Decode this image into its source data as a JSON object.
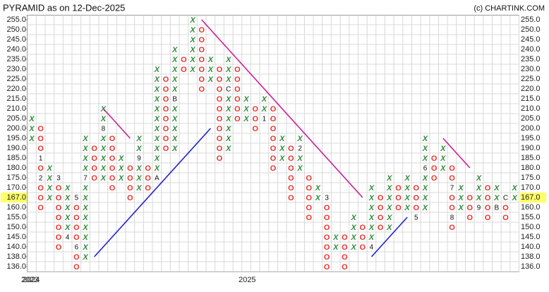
{
  "chart_data": {
    "type": "pnf",
    "title": "PYRAMID as on 12-Dec-2025",
    "credit": "(c) CHARTINK.COM",
    "levels": [
      255,
      250,
      245,
      240,
      235,
      230,
      225,
      220,
      215,
      210,
      205,
      200,
      195,
      190,
      185,
      180,
      175,
      170,
      165,
      160,
      155,
      150,
      145,
      140,
      138,
      136
    ],
    "yticks": [
      {
        "value": 255,
        "label": "255.0"
      },
      {
        "value": 250,
        "label": "250.0"
      },
      {
        "value": 245,
        "label": "245.0"
      },
      {
        "value": 240,
        "label": "240.0"
      },
      {
        "value": 235,
        "label": "235.0"
      },
      {
        "value": 230,
        "label": "230.0"
      },
      {
        "value": 225,
        "label": "225.0"
      },
      {
        "value": 220,
        "label": "220.0"
      },
      {
        "value": 215,
        "label": "215.0"
      },
      {
        "value": 210,
        "label": "210.0"
      },
      {
        "value": 205,
        "label": "205.0"
      },
      {
        "value": 200,
        "label": "200.0"
      },
      {
        "value": 195,
        "label": "195.0"
      },
      {
        "value": 190,
        "label": "190.0"
      },
      {
        "value": 185,
        "label": "185.0"
      },
      {
        "value": 180,
        "label": "180.0"
      },
      {
        "value": 175,
        "label": "175.0"
      },
      {
        "value": 170,
        "label": "170.0"
      },
      {
        "value": 160,
        "label": "160.0"
      },
      {
        "value": 155,
        "label": "155.0"
      },
      {
        "value": 150,
        "label": "150.0"
      },
      {
        "value": 145,
        "label": "145.0"
      },
      {
        "value": 140,
        "label": "140.0"
      },
      {
        "value": 138,
        "label": "138.0"
      },
      {
        "value": 136,
        "label": "136.0"
      }
    ],
    "last_price": {
      "value": 167,
      "label": "167.0"
    },
    "x_color": "#2e8b3a",
    "o_color": "#e8332c",
    "columns": [
      {
        "type": "X",
        "low": 195,
        "high": 205
      },
      {
        "type": "O",
        "low": 160,
        "high": 200,
        "markers": [
          {
            "level": 185,
            "label": "1"
          },
          {
            "level": 175,
            "label": "2"
          }
        ]
      },
      {
        "type": "X",
        "low": 165,
        "high": 180
      },
      {
        "type": "O",
        "low": 140,
        "high": 175,
        "markers": [
          {
            "level": 175,
            "label": "3"
          }
        ]
      },
      {
        "type": "X",
        "low": 145,
        "high": 170,
        "markers": [
          {
            "level": 145,
            "label": "4"
          }
        ]
      },
      {
        "type": "O",
        "low": 136,
        "high": 165,
        "markers": [
          {
            "level": 165,
            "label": "5"
          },
          {
            "level": 140,
            "label": "6"
          }
        ]
      },
      {
        "type": "X",
        "low": 138,
        "high": 195,
        "markers": [
          {
            "level": 175,
            "label": "7"
          }
        ]
      },
      {
        "type": "O",
        "low": 175,
        "high": 190
      },
      {
        "type": "X",
        "low": 175,
        "high": 210,
        "markers": [
          {
            "level": 200,
            "label": "8"
          }
        ]
      },
      {
        "type": "O",
        "low": 170,
        "high": 195
      },
      {
        "type": "X",
        "low": 175,
        "high": 185
      },
      {
        "type": "O",
        "low": 165,
        "high": 180
      },
      {
        "type": "X",
        "low": 170,
        "high": 195,
        "markers": [
          {
            "level": 185,
            "label": "9"
          }
        ]
      },
      {
        "type": "O",
        "low": 170,
        "high": 180
      },
      {
        "type": "X",
        "low": 175,
        "high": 230,
        "markers": [
          {
            "level": 175,
            "label": "A"
          }
        ]
      },
      {
        "type": "O",
        "low": 190,
        "high": 225
      },
      {
        "type": "X",
        "low": 190,
        "high": 240,
        "markers": [
          {
            "level": 215,
            "label": "B"
          }
        ]
      },
      {
        "type": "O",
        "low": 230,
        "high": 235
      },
      {
        "type": "X",
        "low": 230,
        "high": 255
      },
      {
        "type": "O",
        "low": 220,
        "high": 250
      },
      {
        "type": "X",
        "low": 225,
        "high": 235
      },
      {
        "type": "O",
        "low": 185,
        "high": 230
      },
      {
        "type": "X",
        "low": 190,
        "high": 235,
        "markers": [
          {
            "level": 220,
            "label": "C"
          }
        ]
      },
      {
        "type": "O",
        "low": 205,
        "high": 230
      },
      {
        "type": "X",
        "low": 205,
        "high": 215
      },
      {
        "type": "O",
        "low": 200,
        "high": 210
      },
      {
        "type": "X",
        "low": 205,
        "high": 215,
        "markers": [
          {
            "level": 205,
            "label": "1"
          }
        ]
      },
      {
        "type": "O",
        "low": 180,
        "high": 210
      },
      {
        "type": "X",
        "low": 185,
        "high": 195
      },
      {
        "type": "O",
        "low": 165,
        "high": 190
      },
      {
        "type": "X",
        "low": 180,
        "high": 195,
        "markers": [
          {
            "level": 190,
            "label": "2"
          }
        ]
      },
      {
        "type": "O",
        "low": 155,
        "high": 175
      },
      {
        "type": "X",
        "low": 165,
        "high": 170
      },
      {
        "type": "O",
        "low": 136,
        "high": 165,
        "markers": [
          {
            "level": 165,
            "label": "3"
          }
        ]
      },
      {
        "type": "X",
        "low": 140,
        "high": 145
      },
      {
        "type": "O",
        "low": 136,
        "high": 145
      },
      {
        "type": "X",
        "low": 140,
        "high": 155
      },
      {
        "type": "O",
        "low": 140,
        "high": 150
      },
      {
        "type": "X",
        "low": 140,
        "high": 170,
        "markers": [
          {
            "level": 140,
            "label": "4"
          }
        ]
      },
      {
        "type": "O",
        "low": 150,
        "high": 165
      },
      {
        "type": "X",
        "low": 150,
        "high": 175
      },
      {
        "type": "O",
        "low": 160,
        "high": 170
      },
      {
        "type": "X",
        "low": 160,
        "high": 175
      },
      {
        "type": "O",
        "low": 155,
        "high": 170,
        "markers": [
          {
            "level": 155,
            "label": "5"
          }
        ]
      },
      {
        "type": "X",
        "low": 160,
        "high": 195,
        "markers": [
          {
            "level": 180,
            "label": "6"
          }
        ]
      },
      {
        "type": "O",
        "low": 175,
        "high": 185
      },
      {
        "type": "X",
        "low": 180,
        "high": 190
      },
      {
        "type": "O",
        "low": 150,
        "high": 180,
        "markers": [
          {
            "level": 170,
            "label": "7"
          },
          {
            "level": 155,
            "label": "8"
          }
        ]
      },
      {
        "type": "X",
        "low": 160,
        "high": 170
      },
      {
        "type": "O",
        "low": 155,
        "high": 165
      },
      {
        "type": "X",
        "low": 160,
        "high": 175,
        "markers": [
          {
            "level": 160,
            "label": "9"
          }
        ]
      },
      {
        "type": "O",
        "low": 155,
        "high": 170
      },
      {
        "type": "X",
        "low": 160,
        "high": 170,
        "markers": [
          {
            "level": 160,
            "label": "B"
          }
        ]
      },
      {
        "type": "O",
        "low": 155,
        "high": 165,
        "markers": [
          {
            "level": 165,
            "label": "C"
          }
        ]
      },
      {
        "type": "X",
        "low": 165,
        "high": 170
      }
    ],
    "year_starts": [
      {
        "year": "2023",
        "column": 0
      },
      {
        "year": "2024",
        "column": 0
      },
      {
        "year": "2025",
        "column": 24
      }
    ],
    "trendlines": [
      {
        "color": "#cc1f99",
        "from": [
          19,
          255
        ],
        "to": [
          37,
          165
        ]
      },
      {
        "color": "#cc1f99",
        "from": [
          8,
          210
        ],
        "to": [
          11,
          195
        ]
      },
      {
        "color": "#cc1f99",
        "from": [
          46,
          195
        ],
        "to": [
          49,
          180
        ]
      },
      {
        "color": "#2020d0",
        "from": [
          7,
          138
        ],
        "to": [
          20,
          200
        ]
      },
      {
        "color": "#2020d0",
        "from": [
          38,
          138
        ],
        "to": [
          42,
          155
        ]
      }
    ]
  }
}
